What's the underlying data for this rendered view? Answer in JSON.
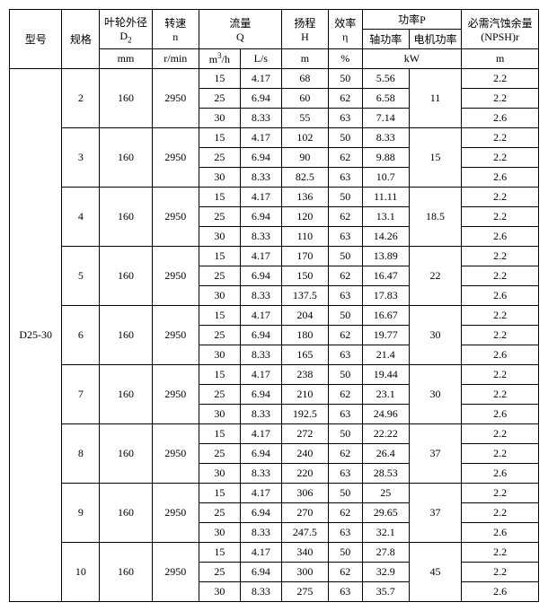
{
  "header": {
    "model": "型号",
    "spec": "规格",
    "d2_line1": "叶轮外径",
    "d2_line2": "D",
    "d2_sub": "2",
    "n_line1": "转速",
    "n_line2": "n",
    "q_line1": "流量",
    "q_line2": "Q",
    "h_line1": "扬程",
    "h_line2": "H",
    "eta_line1": "效率",
    "eta_line2": "η",
    "p_line1": "功率P",
    "p_shaft": "轴功率",
    "p_motor": "电机功率",
    "npsh_line1": "必需汽蚀余量",
    "npsh_line2": "(NPSH)r",
    "u_mm": "mm",
    "u_rmin": "r/min",
    "u_m3h_a": "m",
    "u_m3h_b": "/h",
    "u_ls": "L/s",
    "u_m": "m",
    "u_pct": "%",
    "u_kw": "kW",
    "u_m2": "m"
  },
  "model": "D25-30",
  "groups": [
    {
      "spec": "2",
      "d2": "160",
      "n": "2950",
      "motor": "11",
      "rows": [
        {
          "q1": "15",
          "q2": "4.17",
          "h": "68",
          "eta": "50",
          "ps": "5.56",
          "npsh": "2.2"
        },
        {
          "q1": "25",
          "q2": "6.94",
          "h": "60",
          "eta": "62",
          "ps": "6.58",
          "npsh": "2.2"
        },
        {
          "q1": "30",
          "q2": "8.33",
          "h": "55",
          "eta": "63",
          "ps": "7.14",
          "npsh": "2.6"
        }
      ]
    },
    {
      "spec": "3",
      "d2": "160",
      "n": "2950",
      "motor": "15",
      "rows": [
        {
          "q1": "15",
          "q2": "4.17",
          "h": "102",
          "eta": "50",
          "ps": "8.33",
          "npsh": "2.2"
        },
        {
          "q1": "25",
          "q2": "6.94",
          "h": "90",
          "eta": "62",
          "ps": "9.88",
          "npsh": "2.2"
        },
        {
          "q1": "30",
          "q2": "8.33",
          "h": "82.5",
          "eta": "63",
          "ps": "10.7",
          "npsh": "2.6"
        }
      ]
    },
    {
      "spec": "4",
      "d2": "160",
      "n": "2950",
      "motor": "18.5",
      "rows": [
        {
          "q1": "15",
          "q2": "4.17",
          "h": "136",
          "eta": "50",
          "ps": "11.11",
          "npsh": "2.2"
        },
        {
          "q1": "25",
          "q2": "6.94",
          "h": "120",
          "eta": "62",
          "ps": "13.1",
          "npsh": "2.2"
        },
        {
          "q1": "30",
          "q2": "8.33",
          "h": "110",
          "eta": "63",
          "ps": "14.26",
          "npsh": "2.6"
        }
      ]
    },
    {
      "spec": "5",
      "d2": "160",
      "n": "2950",
      "motor": "22",
      "rows": [
        {
          "q1": "15",
          "q2": "4.17",
          "h": "170",
          "eta": "50",
          "ps": "13.89",
          "npsh": "2.2"
        },
        {
          "q1": "25",
          "q2": "6.94",
          "h": "150",
          "eta": "62",
          "ps": "16.47",
          "npsh": "2.2"
        },
        {
          "q1": "30",
          "q2": "8.33",
          "h": "137.5",
          "eta": "63",
          "ps": "17.83",
          "npsh": "2.6"
        }
      ]
    },
    {
      "spec": "6",
      "d2": "160",
      "n": "2950",
      "motor": "30",
      "rows": [
        {
          "q1": "15",
          "q2": "4.17",
          "h": "204",
          "eta": "50",
          "ps": "16.67",
          "npsh": "2.2"
        },
        {
          "q1": "25",
          "q2": "6.94",
          "h": "180",
          "eta": "62",
          "ps": "19.77",
          "npsh": "2.2"
        },
        {
          "q1": "30",
          "q2": "8.33",
          "h": "165",
          "eta": "63",
          "ps": "21.4",
          "npsh": "2.6"
        }
      ]
    },
    {
      "spec": "7",
      "d2": "160",
      "n": "2950",
      "motor": "30",
      "rows": [
        {
          "q1": "15",
          "q2": "4.17",
          "h": "238",
          "eta": "50",
          "ps": "19.44",
          "npsh": "2.2"
        },
        {
          "q1": "25",
          "q2": "6.94",
          "h": "210",
          "eta": "62",
          "ps": "23.1",
          "npsh": "2.2"
        },
        {
          "q1": "30",
          "q2": "8.33",
          "h": "192.5",
          "eta": "63",
          "ps": "24.96",
          "npsh": "2.6"
        }
      ]
    },
    {
      "spec": "8",
      "d2": "160",
      "n": "2950",
      "motor": "37",
      "rows": [
        {
          "q1": "15",
          "q2": "4.17",
          "h": "272",
          "eta": "50",
          "ps": "22.22",
          "npsh": "2.2"
        },
        {
          "q1": "25",
          "q2": "6.94",
          "h": "240",
          "eta": "62",
          "ps": "26.4",
          "npsh": "2.2"
        },
        {
          "q1": "30",
          "q2": "8.33",
          "h": "220",
          "eta": "63",
          "ps": "28.53",
          "npsh": "2.6"
        }
      ]
    },
    {
      "spec": "9",
      "d2": "160",
      "n": "2950",
      "motor": "37",
      "rows": [
        {
          "q1": "15",
          "q2": "4.17",
          "h": "306",
          "eta": "50",
          "ps": "25",
          "npsh": "2.2"
        },
        {
          "q1": "25",
          "q2": "6.94",
          "h": "270",
          "eta": "62",
          "ps": "29.65",
          "npsh": "2.2"
        },
        {
          "q1": "30",
          "q2": "8.33",
          "h": "247.5",
          "eta": "63",
          "ps": "32.1",
          "npsh": "2.6"
        }
      ]
    },
    {
      "spec": "10",
      "d2": "160",
      "n": "2950",
      "motor": "45",
      "rows": [
        {
          "q1": "15",
          "q2": "4.17",
          "h": "340",
          "eta": "50",
          "ps": "27.8",
          "npsh": "2.2"
        },
        {
          "q1": "25",
          "q2": "6.94",
          "h": "300",
          "eta": "62",
          "ps": "32.9",
          "npsh": "2.2"
        },
        {
          "q1": "30",
          "q2": "8.33",
          "h": "275",
          "eta": "63",
          "ps": "35.7",
          "npsh": "2.6"
        }
      ]
    }
  ]
}
